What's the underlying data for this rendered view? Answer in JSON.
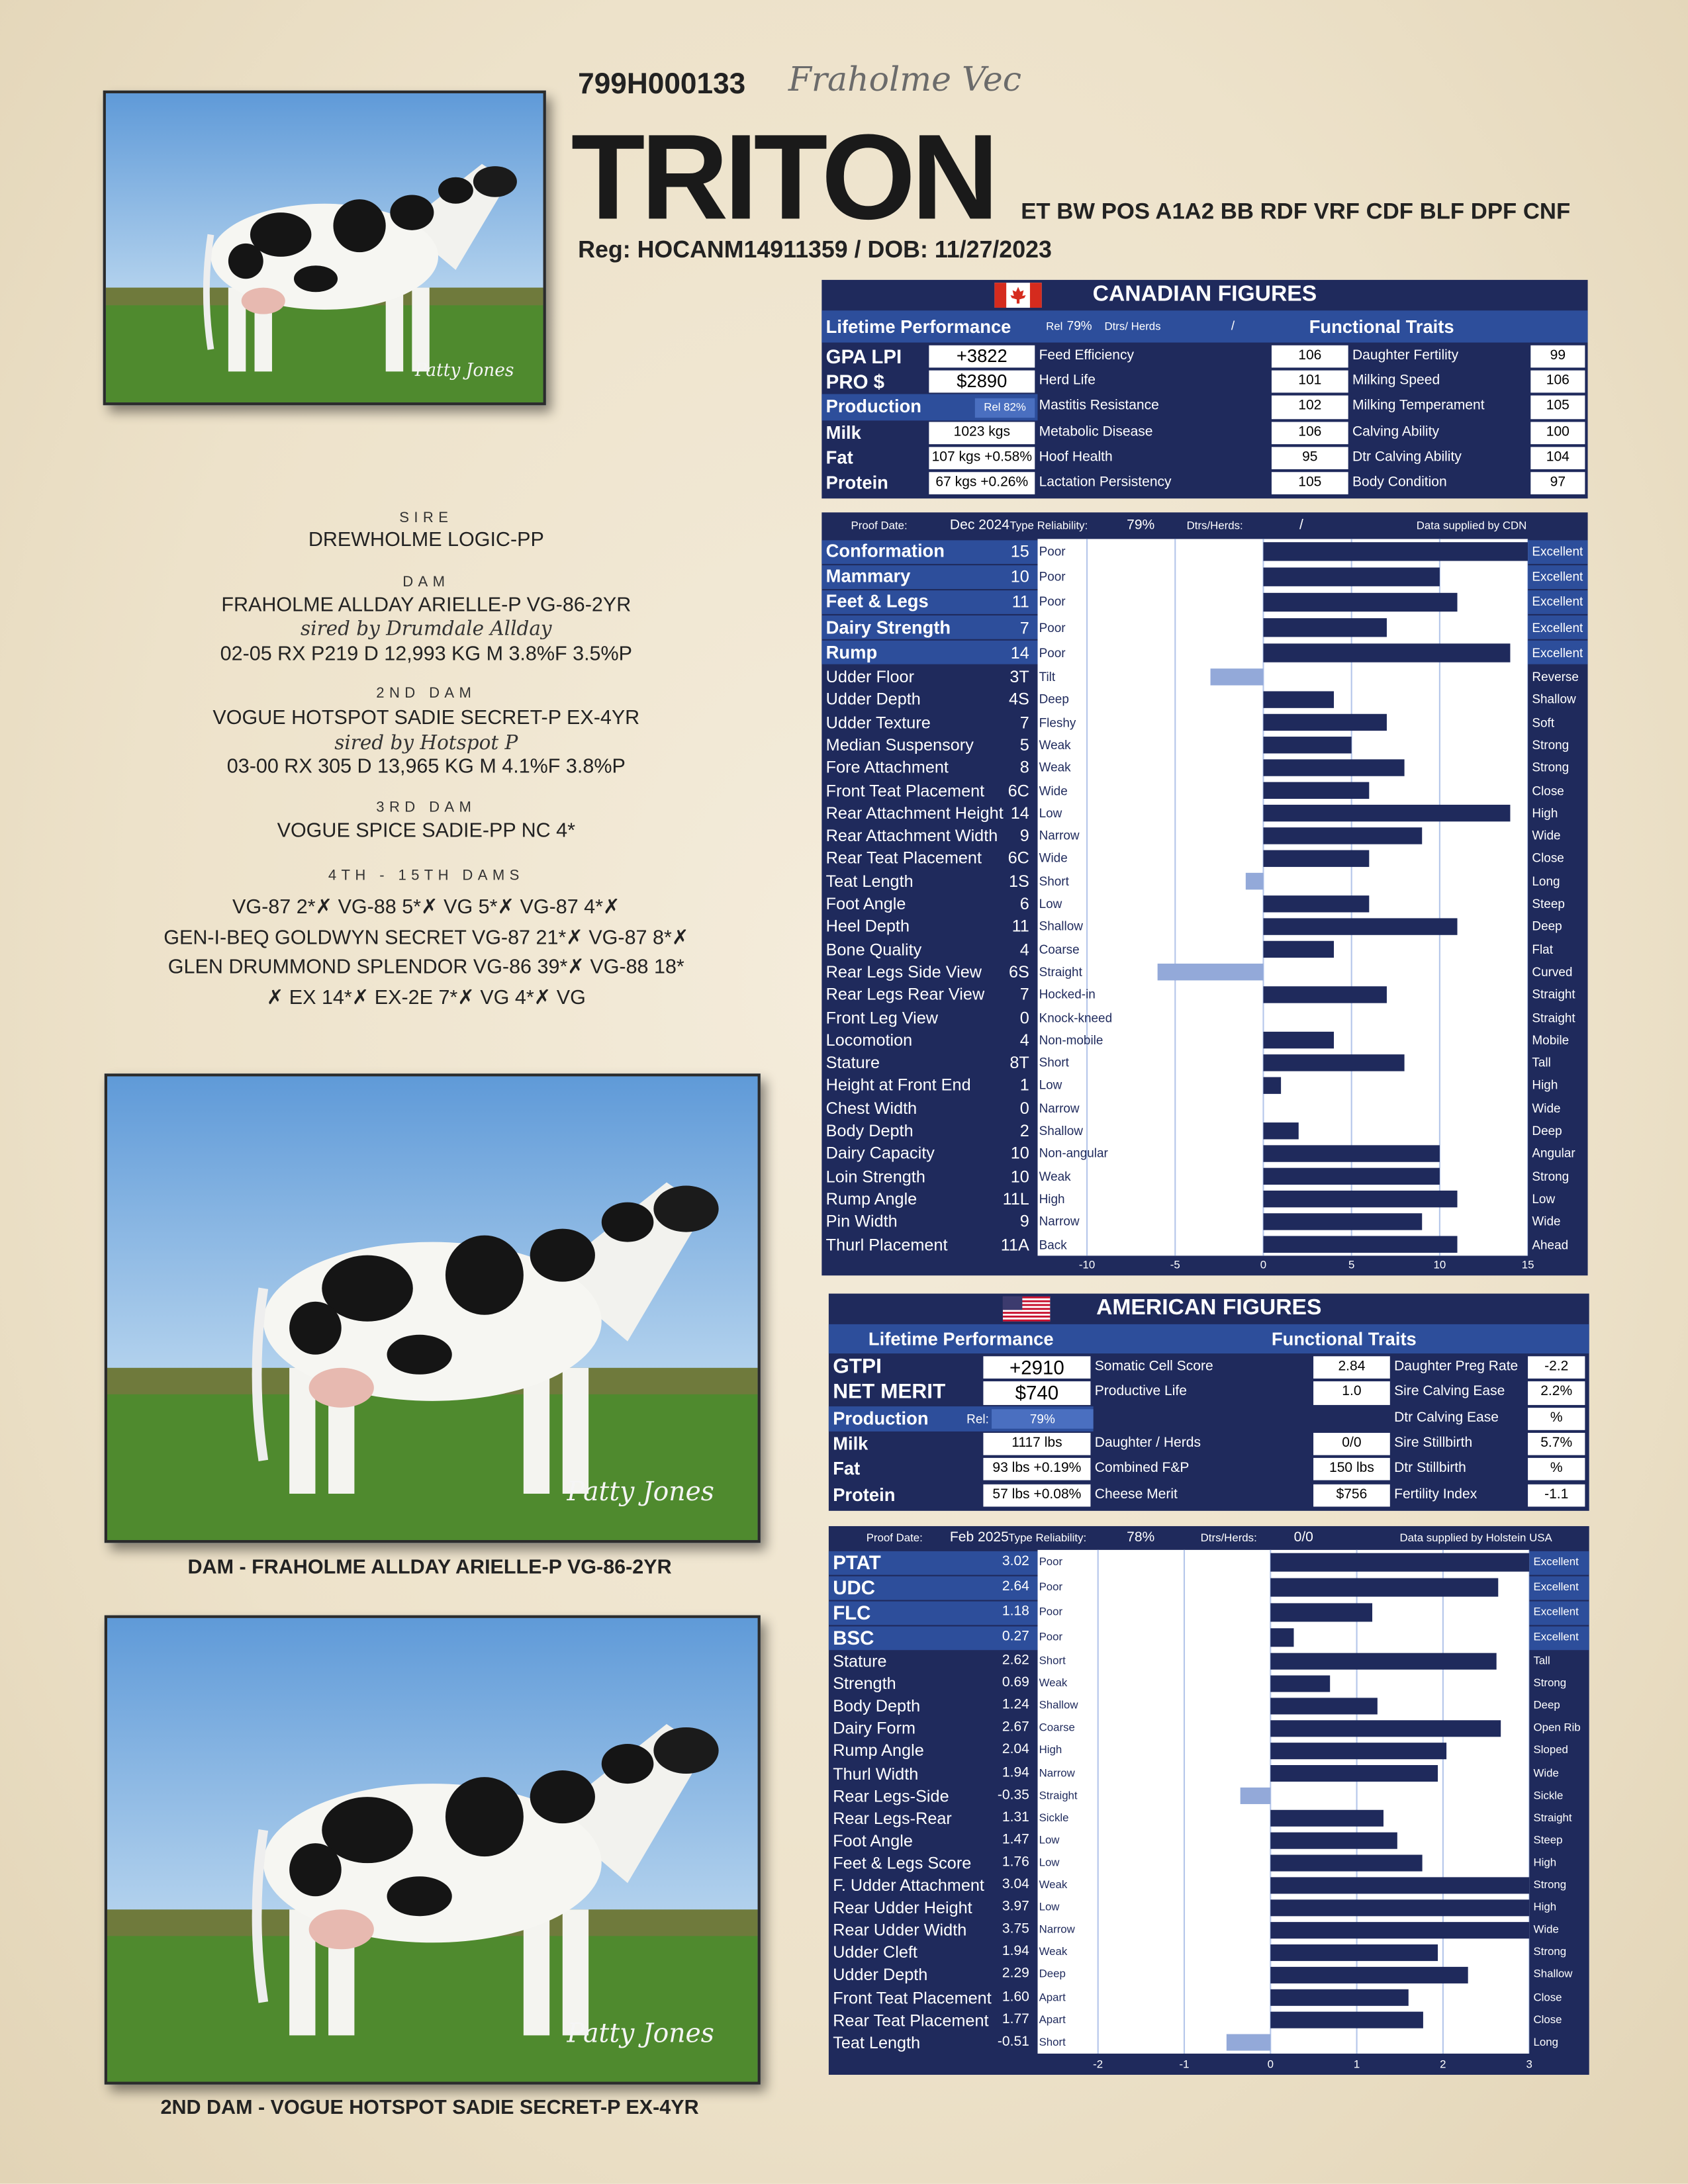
{
  "header": {
    "code": "799H000133",
    "prefix": "Fraholme Vec",
    "name": "TRITON",
    "designations": "ET BW POS A1A2 BB RDF VRF CDF BLF DPF CNF",
    "registration": "Reg: HOCANM14911359 /  DOB: 11/27/2023"
  },
  "photos": {
    "photographer": "Patty Jones",
    "captions": [
      "DAM - FRAHOLME ALLDAY ARIELLE-P VG-86-2YR",
      "2ND DAM - VOGUE HOTSPOT SADIE SECRET-P EX-4YR"
    ]
  },
  "pedigree": {
    "sire_label": "SIRE",
    "sire": "DREWHOLME LOGIC-PP",
    "dam_label": "DAM",
    "dam": "FRAHOLME ALLDAY ARIELLE-P VG-86-2YR",
    "dam_sire": "sired by Drumdale Allday",
    "dam_record": "02-05 RX P219 D 12,993 KG M 3.8%F 3.5%P",
    "second_dam_label": "2ND DAM",
    "second_dam": "VOGUE HOTSPOT SADIE SECRET-P EX-4YR",
    "second_dam_sire": "sired by Hotspot P",
    "second_dam_record": "03-00 RX 305 D 13,965 KG M 4.1%F 3.8%P",
    "third_dam_label": "3RD DAM",
    "third_dam": "VOGUE SPICE SADIE-PP NC 4*",
    "dams_label": "4TH - 15TH DAMS",
    "dams": [
      "VG-87 2*✗ VG-88 5*✗ VG 5*✗ VG-87 4*✗",
      "GEN-I-BEQ GOLDWYN SECRET VG-87 21*✗ VG-87 8*✗",
      "GLEN DRUMMOND SPLENDOR VG-86 39*✗ VG-88 18*",
      "✗ EX 14*✗ EX-2E 7*✗ VG 4*✗ VG"
    ]
  },
  "canadian": {
    "title": "CANADIAN FIGURES",
    "lifetime_label": "Lifetime Performance",
    "rel_label": "Rel",
    "rel": "79%",
    "dtrs_herds_label": "Dtrs/ Herds",
    "dtrs_herds": "/",
    "functional_label": "Functional Traits",
    "indexes": [
      {
        "name": "GPA LPI",
        "value": "+3822"
      },
      {
        "name": "PRO  $",
        "value": "$2890"
      }
    ],
    "production_label": "Production",
    "production_rel": "Rel 82%",
    "production": [
      {
        "name": "Milk",
        "value": "1023 kgs"
      },
      {
        "name": "Fat",
        "value": "107 kgs +0.58%"
      },
      {
        "name": "Protein",
        "value": "67 kgs +0.26%"
      }
    ],
    "functional": [
      [
        {
          "name": "Feed Efficiency",
          "value": 106
        },
        {
          "name": "Herd Life",
          "value": 101
        },
        {
          "name": "Mastitis Resistance",
          "value": 102
        },
        {
          "name": "Metabolic Disease",
          "value": 106
        },
        {
          "name": "Hoof Health",
          "value": 95
        },
        {
          "name": "Lactation Persistency",
          "value": 105
        }
      ],
      [
        {
          "name": "Daughter Fertility",
          "value": 99
        },
        {
          "name": "Milking Speed",
          "value": 106
        },
        {
          "name": "Milking Temperament",
          "value": 105
        },
        {
          "name": "Calving Ability",
          "value": 100
        },
        {
          "name": "Dtr Calving Ability",
          "value": 104
        },
        {
          "name": "Body Condition",
          "value": 97
        }
      ]
    ]
  },
  "canadian_type": {
    "proof_date_label": "Proof Date:",
    "proof_date": "Dec 2024",
    "reliability_label": "Type Reliability:",
    "reliability": "79%",
    "dtrs_herds_label": "Dtrs/Herds:",
    "dtrs_herds": "/",
    "source": "Data supplied by CDN",
    "xlim": [
      -12.8,
      15
    ],
    "xticks": [
      -10,
      -5,
      0,
      5,
      10,
      15
    ],
    "summary_traits": [
      {
        "name": "Conformation",
        "value": 15,
        "low": "Poor",
        "high": "Excellent"
      },
      {
        "name": "Mammary",
        "value": 10,
        "low": "Poor",
        "high": "Excellent"
      },
      {
        "name": "Feet & Legs",
        "value": 11,
        "low": "Poor",
        "high": "Excellent"
      },
      {
        "name": "Dairy Strength",
        "value": 7,
        "low": "Poor",
        "high": "Excellent"
      },
      {
        "name": "Rump",
        "value": 14,
        "low": "Poor",
        "high": "Excellent"
      }
    ],
    "linear_traits": [
      {
        "name": "Udder Floor",
        "value": -3,
        "label": "3T",
        "low": "Tilt",
        "high": "Reverse"
      },
      {
        "name": "Udder Depth",
        "value": 4,
        "label": "4S",
        "low": "Deep",
        "high": "Shallow"
      },
      {
        "name": "Udder Texture",
        "value": 7,
        "low": "Fleshy",
        "high": "Soft"
      },
      {
        "name": "Median Suspensory",
        "value": 5,
        "low": "Weak",
        "high": "Strong"
      },
      {
        "name": "Fore Attachment",
        "value": 8,
        "low": "Weak",
        "high": "Strong"
      },
      {
        "name": "Front Teat Placement",
        "value": 6,
        "label": "6C",
        "low": "Wide",
        "high": "Close"
      },
      {
        "name": "Rear Attachment Height",
        "value": 14,
        "low": "Low",
        "high": "High"
      },
      {
        "name": "Rear Attachment Width",
        "value": 9,
        "low": "Narrow",
        "high": "Wide"
      },
      {
        "name": "Rear Teat Placement",
        "value": 6,
        "label": "6C",
        "low": "Wide",
        "high": "Close"
      },
      {
        "name": "Teat Length",
        "value": -1,
        "label": "1S",
        "low": "Short",
        "high": "Long"
      },
      {
        "name": "Foot Angle",
        "value": 6,
        "low": "Low",
        "high": "Steep"
      },
      {
        "name": "Heel Depth",
        "value": 11,
        "low": "Shallow",
        "high": "Deep"
      },
      {
        "name": "Bone Quality",
        "value": 4,
        "low": "Coarse",
        "high": "Flat"
      },
      {
        "name": "Rear Legs Side View",
        "value": -6,
        "label": "6S",
        "low": "Straight",
        "high": "Curved"
      },
      {
        "name": "Rear Legs Rear View",
        "value": 7,
        "low": "Hocked-in",
        "high": "Straight"
      },
      {
        "name": "Front Leg View",
        "value": 0,
        "low": "Knock-kneed",
        "high": "Straight"
      },
      {
        "name": "Locomotion",
        "value": 4,
        "low": "Non-mobile",
        "high": "Mobile"
      },
      {
        "name": "Stature",
        "value": 8,
        "label": "8T",
        "low": "Short",
        "high": "Tall"
      },
      {
        "name": "Height at Front End",
        "value": 1,
        "low": "Low",
        "high": "High"
      },
      {
        "name": "Chest Width",
        "value": 0,
        "low": "Narrow",
        "high": "Wide"
      },
      {
        "name": "Body Depth",
        "value": 2,
        "low": "Shallow",
        "high": "Deep"
      },
      {
        "name": "Dairy Capacity",
        "value": 10,
        "low": "Non-angular",
        "high": "Angular"
      },
      {
        "name": "Loin Strength",
        "value": 10,
        "low": "Weak",
        "high": "Strong"
      },
      {
        "name": "Rump Angle",
        "value": 11,
        "label": "11L",
        "low": "High",
        "high": "Low"
      },
      {
        "name": "Pin Width",
        "value": 9,
        "low": "Narrow",
        "high": "Wide"
      },
      {
        "name": "Thurl Placement",
        "value": 11,
        "label": "11A",
        "low": "Back",
        "high": "Ahead"
      }
    ]
  },
  "american": {
    "title": "AMERICAN FIGURES",
    "lifetime_label": "Lifetime Performance",
    "functional_label": "Functional Traits",
    "indexes": [
      {
        "name": "GTPI",
        "value": "+2910"
      },
      {
        "name": "NET MERIT",
        "value": "$740"
      }
    ],
    "production_label": "Production",
    "production_rel_label": "Rel:",
    "production_rel": "79%",
    "production": [
      {
        "name": "Milk",
        "value": "1117 lbs"
      },
      {
        "name": "Fat",
        "value": "93 lbs +0.19%"
      },
      {
        "name": "Protein",
        "value": "57 lbs +0.08%"
      }
    ],
    "functional": [
      [
        {
          "name": "Somatic Cell Score",
          "value": "2.84"
        },
        {
          "name": "Productive Life",
          "value": "1.0"
        },
        {
          "name": "Daughter / Herds",
          "value": "0/0"
        },
        {
          "name": "Combined F&P",
          "value": "150 lbs"
        },
        {
          "name": "Cheese Merit",
          "value": "$756"
        }
      ],
      [
        {
          "name": "Daughter Preg Rate",
          "value": "-2.2"
        },
        {
          "name": "Sire Calving Ease",
          "value": "2.2%"
        },
        {
          "name": "Dtr Calving Ease",
          "value": "%"
        },
        {
          "name": "Sire Stillbirth",
          "value": "5.7%"
        },
        {
          "name": "Dtr Stillbirth",
          "value": "%"
        },
        {
          "name": "Fertility Index",
          "value": "-1.1"
        }
      ]
    ]
  },
  "american_type": {
    "proof_date_label": "Proof Date:",
    "proof_date": "Feb 2025",
    "reliability_label": "Type Reliability:",
    "reliability": "78%",
    "dtrs_herds_label": "Dtrs/Herds:",
    "dtrs_herds": "0/0",
    "source": "Data supplied by Holstein USA",
    "xlim": [
      -2.7,
      3
    ],
    "xticks": [
      -2,
      -1,
      0,
      1,
      2,
      3
    ],
    "summary_traits": [
      {
        "name": "PTAT",
        "value": 3.02,
        "low": "Poor",
        "high": "Excellent"
      },
      {
        "name": "UDC",
        "value": 2.64,
        "low": "Poor",
        "high": "Excellent"
      },
      {
        "name": "FLC",
        "value": 1.18,
        "low": "Poor",
        "high": "Excellent"
      },
      {
        "name": "BSC",
        "value": 0.27,
        "low": "Poor",
        "high": "Excellent"
      }
    ],
    "linear_traits": [
      {
        "name": "Stature",
        "value": 2.62,
        "low": "Short",
        "high": "Tall"
      },
      {
        "name": "Strength",
        "value": 0.69,
        "low": "Weak",
        "high": "Strong"
      },
      {
        "name": "Body Depth",
        "value": 1.24,
        "low": "Shallow",
        "high": "Deep"
      },
      {
        "name": "Dairy Form",
        "value": 2.67,
        "low": "Coarse",
        "high": "Open Rib"
      },
      {
        "name": "Rump Angle",
        "value": 2.04,
        "low": "High",
        "high": "Sloped"
      },
      {
        "name": "Thurl Width",
        "value": 1.94,
        "low": "Narrow",
        "high": "Wide"
      },
      {
        "name": "Rear Legs-Side",
        "value": -0.35,
        "low": "Straight",
        "high": "Sickle"
      },
      {
        "name": "Rear Legs-Rear",
        "value": 1.31,
        "low": "Sickle",
        "high": "Straight"
      },
      {
        "name": "Foot Angle",
        "value": 1.47,
        "low": "Low",
        "high": "Steep"
      },
      {
        "name": "Feet & Legs Score",
        "value": 1.76,
        "low": "Low",
        "high": "High"
      },
      {
        "name": "F. Udder Attachment",
        "value": 3.04,
        "low": "Weak",
        "high": "Strong"
      },
      {
        "name": "Rear Udder Height",
        "value": 3.97,
        "low": "Low",
        "high": "High"
      },
      {
        "name": "Rear Udder Width",
        "value": 3.75,
        "low": "Narrow",
        "high": "Wide"
      },
      {
        "name": "Udder Cleft",
        "value": 1.94,
        "low": "Weak",
        "high": "Strong"
      },
      {
        "name": "Udder Depth",
        "value": 2.29,
        "low": "Deep",
        "high": "Shallow"
      },
      {
        "name": "Front Teat Placement",
        "value": 1.6,
        "label": "1.60",
        "low": "Apart",
        "high": "Close"
      },
      {
        "name": "Rear Teat Placement",
        "value": 1.77,
        "low": "Apart",
        "high": "Close"
      },
      {
        "name": "Teat Length",
        "value": -0.51,
        "low": "Short",
        "high": "Long"
      }
    ]
  }
}
